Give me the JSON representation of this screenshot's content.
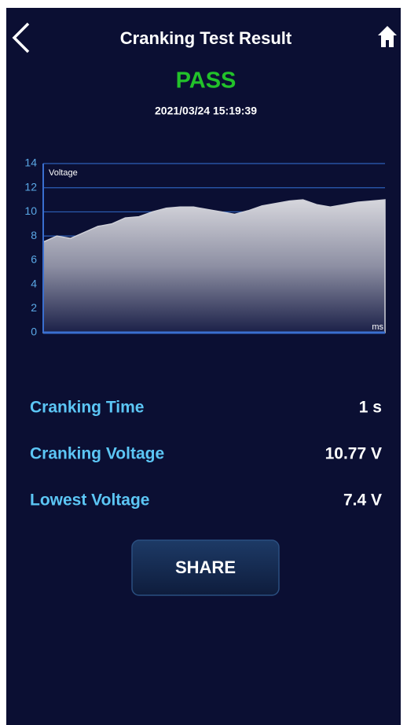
{
  "header": {
    "title": "Cranking Test Result",
    "status": "PASS",
    "datetime": "2021/03/24 15:19:39"
  },
  "chart_data": {
    "type": "area",
    "y_label": "Voltage",
    "x_label": "ms",
    "values": [
      7.5,
      8.0,
      7.8,
      8.3,
      8.8,
      9.0,
      9.5,
      9.6,
      10.0,
      10.3,
      10.4,
      10.4,
      10.2,
      10.0,
      9.8,
      10.1,
      10.5,
      10.7,
      10.9,
      11.0,
      10.6,
      10.4,
      10.6,
      10.8,
      10.9,
      11.0
    ],
    "ylim": [
      0,
      14
    ],
    "yticks": [
      0,
      2,
      4,
      6,
      8,
      10,
      12,
      14
    ],
    "grid": true,
    "color": "#cfd0d8"
  },
  "results": [
    {
      "label": "Cranking Time",
      "value": "1 s"
    },
    {
      "label": "Cranking Voltage",
      "value": "10.77 V"
    },
    {
      "label": "Lowest Voltage",
      "value": "7.4 V"
    }
  ],
  "button": {
    "label": "SHARE"
  }
}
